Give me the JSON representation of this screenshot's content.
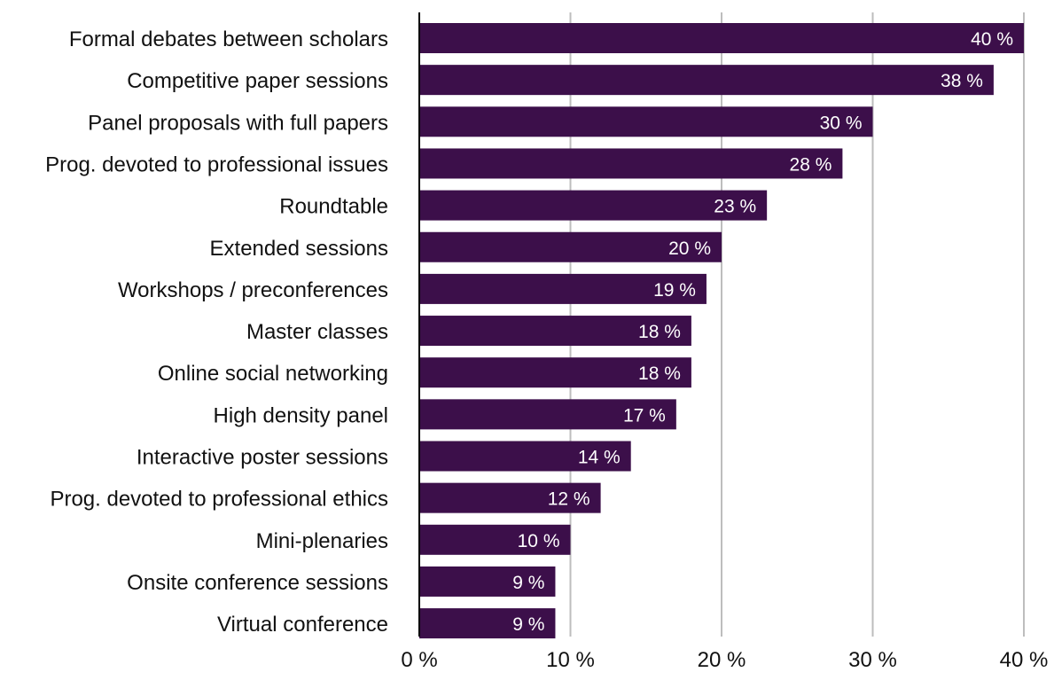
{
  "chart_data": {
    "type": "bar",
    "orientation": "horizontal",
    "categories": [
      "Formal debates between scholars",
      "Competitive paper sessions",
      "Panel proposals with full papers",
      "Prog. devoted to professional issues",
      "Roundtable",
      "Extended sessions",
      "Workshops / preconferences",
      "Master classes",
      "Online social networking",
      "High density panel",
      "Interactive poster sessions",
      "Prog. devoted to professional ethics",
      "Mini-plenaries",
      "Onsite conference sessions",
      "Virtual conference"
    ],
    "values": [
      40,
      38,
      30,
      28,
      23,
      20,
      19,
      18,
      18,
      17,
      14,
      12,
      10,
      9,
      9
    ],
    "data_labels": [
      "40 %",
      "38 %",
      "30 %",
      "28 %",
      "23 %",
      "20 %",
      "19 %",
      "18 %",
      "18 %",
      "17 %",
      "14 %",
      "12 %",
      "10 %",
      "9 %",
      "9 %"
    ],
    "x_ticks": [
      0,
      10,
      20,
      30,
      40
    ],
    "x_tick_labels": [
      "0 %",
      "10 %",
      "20 %",
      "30 %",
      "40 %"
    ],
    "xlim": [
      0,
      40
    ],
    "title": "",
    "xlabel": "",
    "ylabel": "",
    "grid": "vertical",
    "legend": "none",
    "colors": {
      "bar": "#3c0f4a",
      "grid": "#bdbdbd",
      "axis": "#000000",
      "label_text": "#111111",
      "bar_label_text": "#ffffff"
    }
  }
}
